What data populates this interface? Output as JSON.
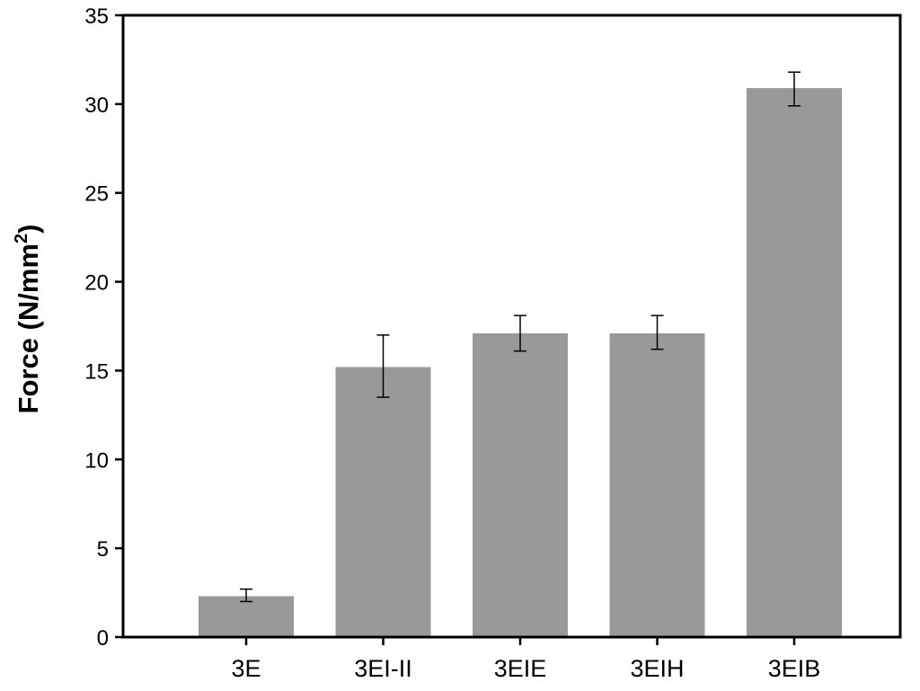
{
  "chart_data": {
    "type": "bar",
    "categories": [
      "3E",
      "3EI-II",
      "3EIE",
      "3EIH",
      "3EIB"
    ],
    "values": [
      2.3,
      15.2,
      17.1,
      17.1,
      30.9
    ],
    "error_low": [
      2.0,
      13.5,
      16.1,
      16.2,
      29.9
    ],
    "error_high": [
      2.7,
      17.0,
      18.1,
      18.1,
      31.8
    ],
    "xlabel": "",
    "ylabel": "Force (N/mm",
    "ylabel_sup": "2",
    "ylabel_close": ")",
    "ylim": [
      0,
      35
    ],
    "yticks": [
      "0",
      "5",
      "10",
      "15",
      "20",
      "25",
      "30",
      "35"
    ],
    "grid": false,
    "colors": {
      "bar": "#999999",
      "axis": "#000000",
      "errorbar": "#000000"
    }
  }
}
